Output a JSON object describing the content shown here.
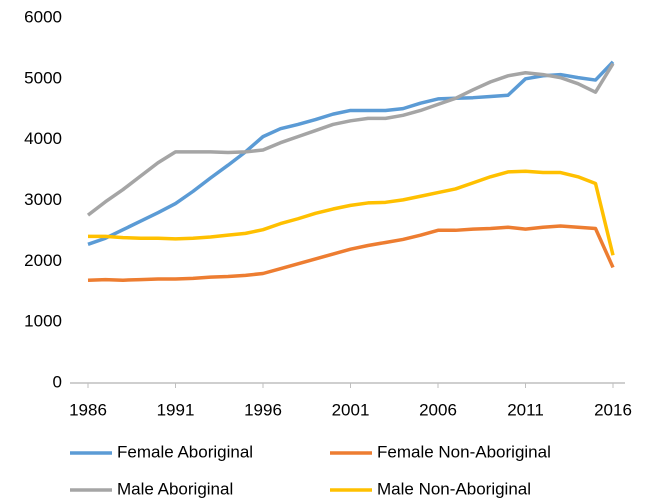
{
  "chart_data": {
    "type": "line",
    "x": [
      1986,
      1987,
      1988,
      1989,
      1990,
      1991,
      1992,
      1993,
      1994,
      1995,
      1996,
      1997,
      1998,
      1999,
      2000,
      2001,
      2002,
      2003,
      2004,
      2005,
      2006,
      2007,
      2008,
      2009,
      2010,
      2011,
      2012,
      2013,
      2014,
      2015,
      2016
    ],
    "series": [
      {
        "name": "Female Aboriginal",
        "color": "#5b9bd5",
        "values": [
          2280,
          2380,
          2520,
          2660,
          2800,
          2950,
          3150,
          3370,
          3580,
          3800,
          4050,
          4180,
          4250,
          4330,
          4420,
          4480,
          4480,
          4480,
          4510,
          4600,
          4670,
          4680,
          4690,
          4710,
          4730,
          5000,
          5050,
          5070,
          5020,
          4980,
          5280
        ]
      },
      {
        "name": "Female Non-Aboriginal",
        "color": "#ed7d31",
        "values": [
          1690,
          1700,
          1690,
          1700,
          1710,
          1710,
          1720,
          1740,
          1750,
          1770,
          1800,
          1880,
          1960,
          2040,
          2120,
          2200,
          2260,
          2310,
          2360,
          2430,
          2510,
          2510,
          2530,
          2540,
          2560,
          2530,
          2560,
          2580,
          2560,
          2540,
          1900
        ]
      },
      {
        "name": "Male Aboriginal",
        "color": "#a5a5a5",
        "values": [
          2760,
          2980,
          3180,
          3400,
          3620,
          3800,
          3800,
          3800,
          3790,
          3800,
          3830,
          3950,
          4050,
          4150,
          4250,
          4310,
          4350,
          4350,
          4400,
          4480,
          4580,
          4680,
          4820,
          4950,
          5050,
          5100,
          5070,
          5020,
          4920,
          4780,
          5250
        ]
      },
      {
        "name": "Male Non-Aboriginal",
        "color": "#ffc000",
        "values": [
          2410,
          2410,
          2390,
          2380,
          2380,
          2370,
          2380,
          2400,
          2430,
          2460,
          2520,
          2620,
          2700,
          2790,
          2860,
          2920,
          2960,
          2970,
          3010,
          3070,
          3130,
          3190,
          3290,
          3390,
          3470,
          3480,
          3460,
          3460,
          3390,
          3280,
          2100
        ]
      }
    ],
    "xlim": [
      1986,
      2016
    ],
    "xticks": [
      1986,
      1991,
      1996,
      2001,
      2006,
      2011,
      2016
    ],
    "ylim": [
      0,
      6000
    ],
    "yticks": [
      0,
      1000,
      2000,
      3000,
      4000,
      5000,
      6000
    ],
    "grid": false
  }
}
